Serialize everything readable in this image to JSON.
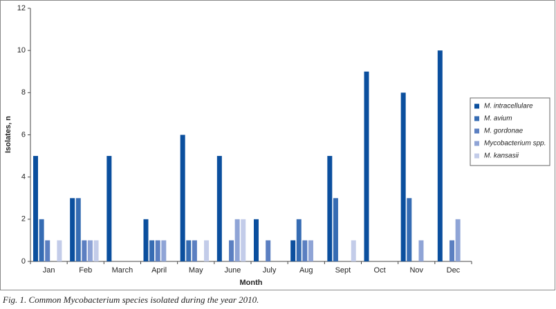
{
  "chart_data": {
    "type": "bar",
    "x_label": "Month",
    "y_label": "Isolates, n",
    "caption": "Fig. 1. Common Mycobacterium species isolated during the year 2010.",
    "categories": [
      "Jan",
      "Feb",
      "March",
      "April",
      "May",
      "June",
      "July",
      "Aug",
      "Sept",
      "Oct",
      "Nov",
      "Dec"
    ],
    "series": [
      {
        "name": "M. intracellulare",
        "color": "#0b4f9e",
        "values": [
          5,
          3,
          5,
          2,
          6,
          5,
          2,
          1,
          5,
          9,
          8,
          10
        ]
      },
      {
        "name": "M. avium",
        "color": "#366cb3",
        "values": [
          2,
          3,
          0,
          1,
          1,
          0,
          0,
          2,
          3,
          0,
          3,
          0
        ]
      },
      {
        "name": "M. gordonae",
        "color": "#5b7fc1",
        "values": [
          1,
          1,
          0,
          1,
          1,
          1,
          1,
          1,
          0,
          0,
          0,
          1
        ]
      },
      {
        "name": "Mycobacterium spp.",
        "color": "#8fa4d6",
        "values": [
          0,
          1,
          0,
          1,
          0,
          2,
          0,
          1,
          0,
          0,
          1,
          2
        ]
      },
      {
        "name": "M. kansasii",
        "color": "#c3cce9",
        "values": [
          1,
          1,
          0,
          0,
          1,
          2,
          0,
          0,
          1,
          0,
          0,
          0
        ]
      }
    ],
    "ylim": [
      0,
      12
    ],
    "yticks": [
      0,
      2,
      4,
      6,
      8,
      10,
      12
    ],
    "legend": "right"
  }
}
